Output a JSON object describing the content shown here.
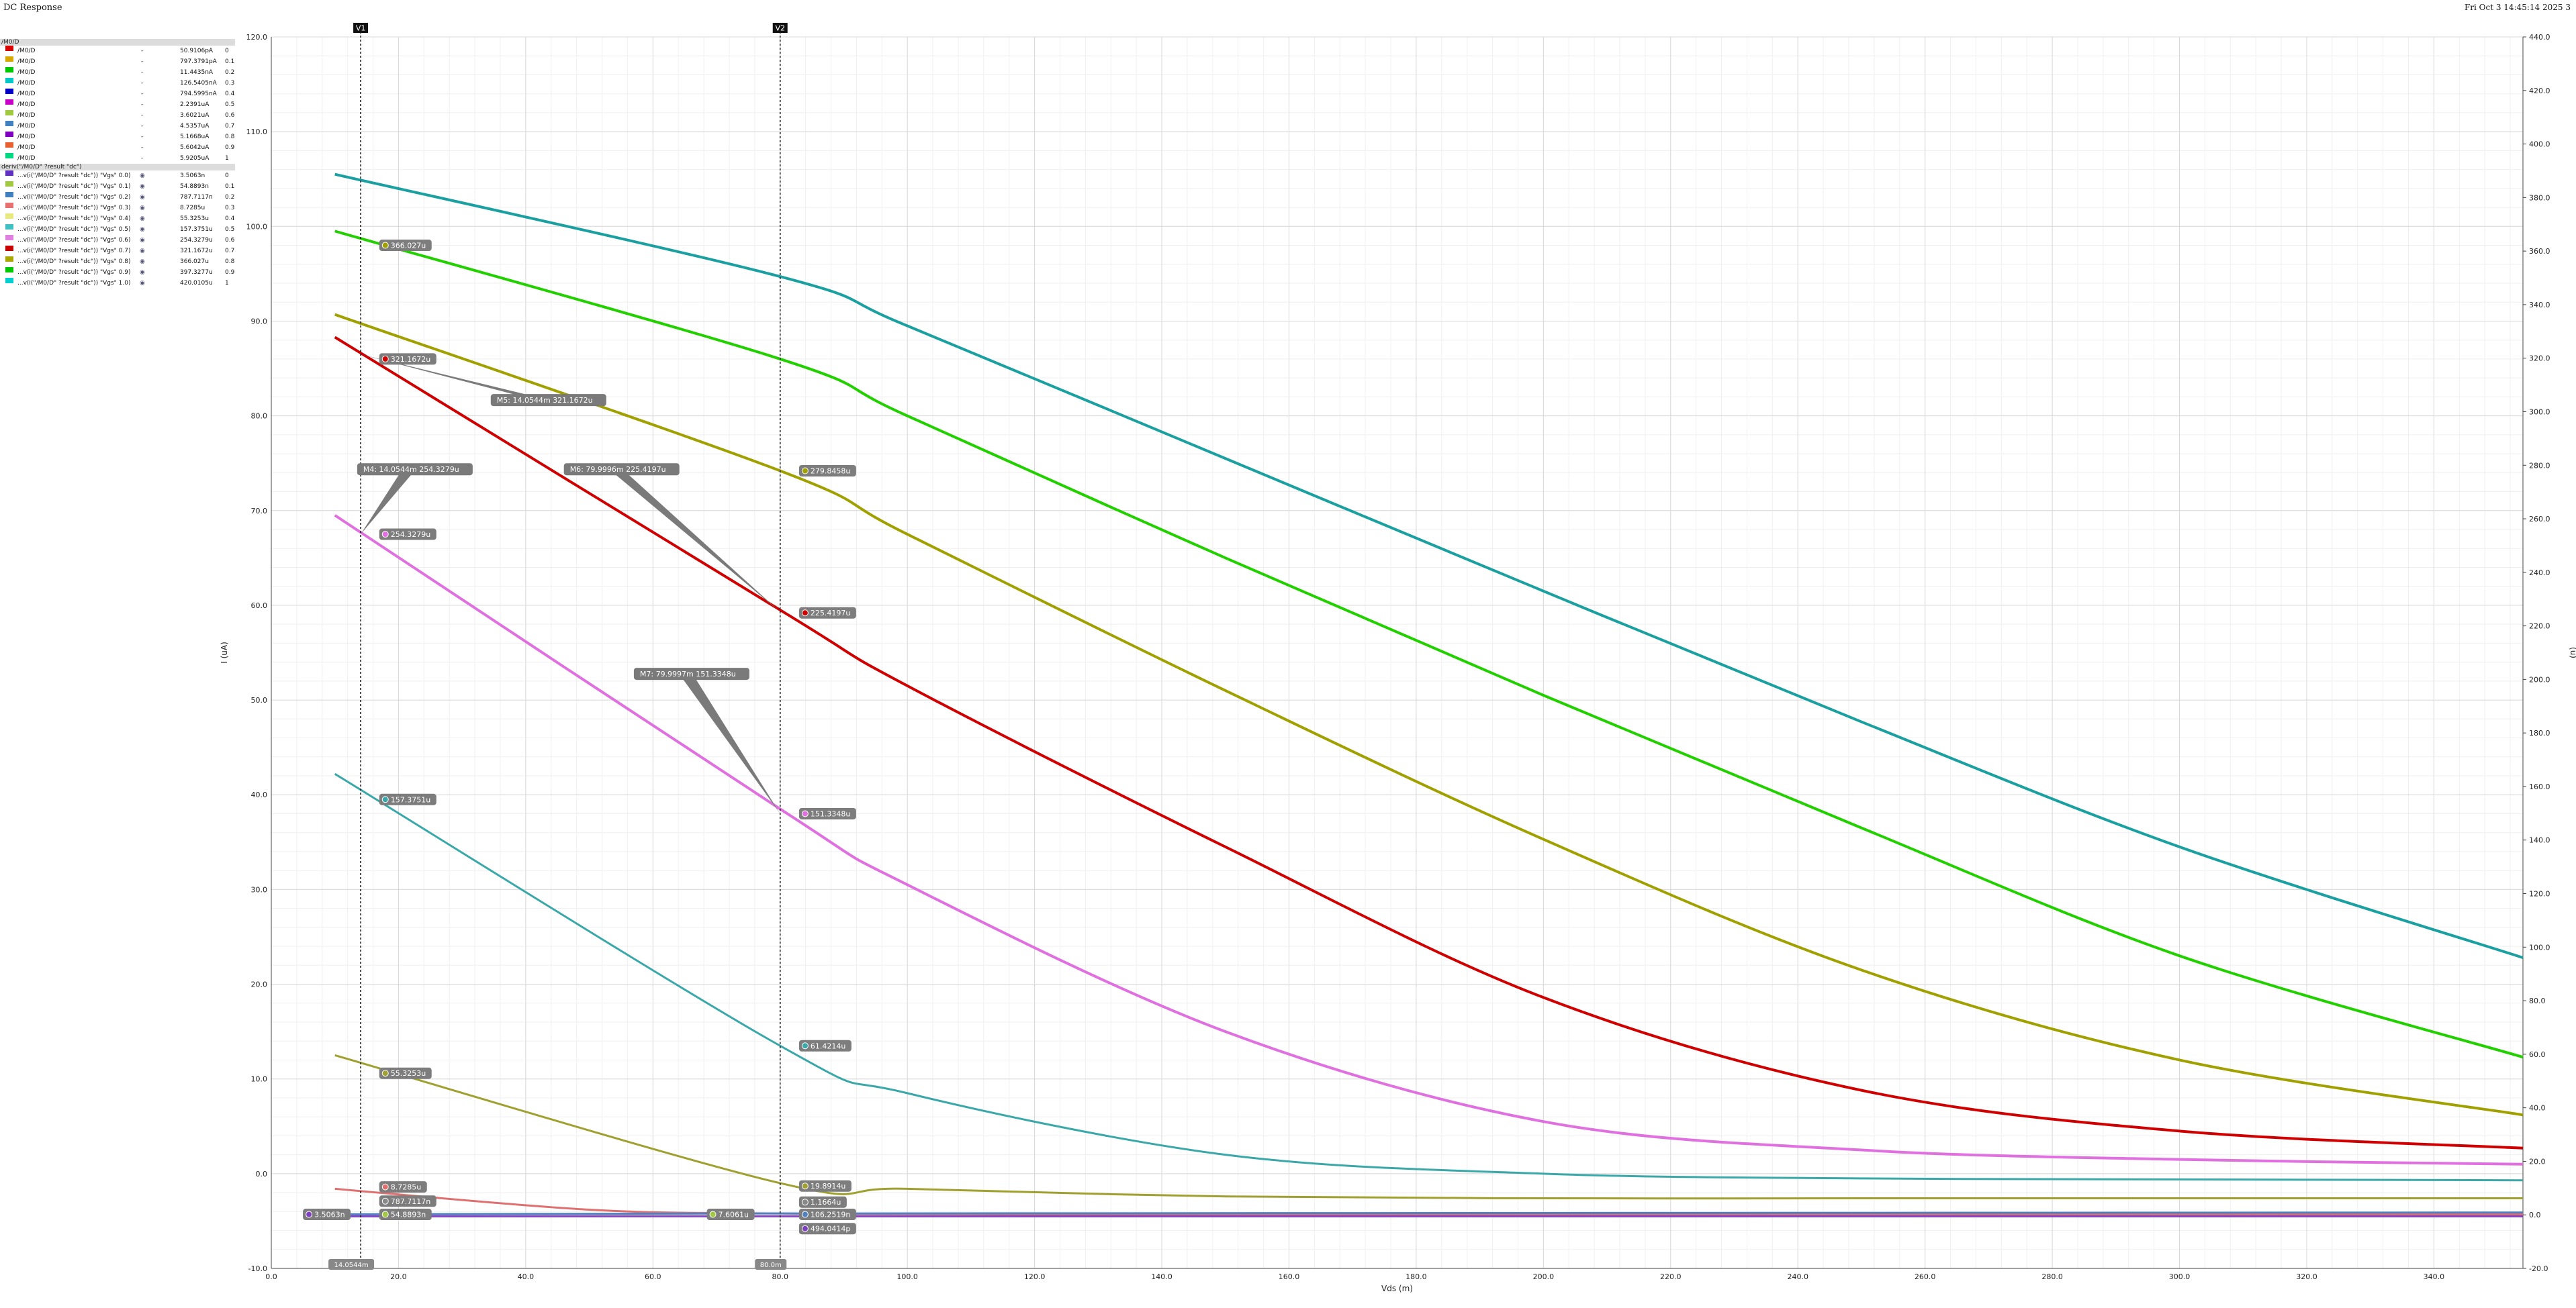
{
  "app": {
    "title": "DC Response",
    "timestamp": "Fri Oct 3 14:45:14 2025  3"
  },
  "legend": {
    "group1_header": "/M0/D",
    "group1": [
      {
        "name": "/M0/D",
        "dash": "-",
        "value": "50.9106pA",
        "param": "0",
        "color": "#d80000"
      },
      {
        "name": "/M0/D",
        "dash": "-",
        "value": "797.3791pA",
        "param": "0.1",
        "color": "#d8a800"
      },
      {
        "name": "/M0/D",
        "dash": "-",
        "value": "11.4435nA",
        "param": "0.2",
        "color": "#00c800"
      },
      {
        "name": "/M0/D",
        "dash": "-",
        "value": "126.5405nA",
        "param": "0.3",
        "color": "#00c8c8"
      },
      {
        "name": "/M0/D",
        "dash": "-",
        "value": "794.5995nA",
        "param": "0.4",
        "color": "#0000c8"
      },
      {
        "name": "/M0/D",
        "dash": "-",
        "value": "2.2391uA",
        "param": "0.5",
        "color": "#c800c8"
      },
      {
        "name": "/M0/D",
        "dash": "-",
        "value": "3.6021uA",
        "param": "0.6",
        "color": "#a0c840"
      },
      {
        "name": "/M0/D",
        "dash": "-",
        "value": "4.5357uA",
        "param": "0.7",
        "color": "#4080c0"
      },
      {
        "name": "/M0/D",
        "dash": "-",
        "value": "5.1668uA",
        "param": "0.8",
        "color": "#8000c0"
      },
      {
        "name": "/M0/D",
        "dash": "-",
        "value": "5.6042uA",
        "param": "0.9",
        "color": "#e86030"
      },
      {
        "name": "/M0/D",
        "dash": "-",
        "value": "5.9205uA",
        "param": "1",
        "color": "#00d880"
      }
    ],
    "group2_header": "deriv(\"/M0/D\" ?result \"dc\")",
    "group2": [
      {
        "name": "...v(i(\"/M0/D\" ?result \"dc\")) \"Vgs\" 0.0)",
        "value": "3.5063n",
        "param": "0",
        "color": "#6030c0"
      },
      {
        "name": "...v(i(\"/M0/D\" ?result \"dc\")) \"Vgs\" 0.1)",
        "value": "54.8893n",
        "param": "0.1",
        "color": "#a0c840"
      },
      {
        "name": "...v(i(\"/M0/D\" ?result \"dc\")) \"Vgs\" 0.2)",
        "value": "787.7117n",
        "param": "0.2",
        "color": "#4080c0"
      },
      {
        "name": "...v(i(\"/M0/D\" ?result \"dc\")) \"Vgs\" 0.3)",
        "value": "8.7285u",
        "param": "0.3",
        "color": "#e87070"
      },
      {
        "name": "...v(i(\"/M0/D\" ?result \"dc\")) \"Vgs\" 0.4)",
        "value": "55.3253u",
        "param": "0.4",
        "color": "#e8e880"
      },
      {
        "name": "...v(i(\"/M0/D\" ?result \"dc\")) \"Vgs\" 0.5)",
        "value": "157.3751u",
        "param": "0.5",
        "color": "#40c0c0"
      },
      {
        "name": "...v(i(\"/M0/D\" ?result \"dc\")) \"Vgs\" 0.6)",
        "value": "254.3279u",
        "param": "0.6",
        "color": "#e080e0"
      },
      {
        "name": "...v(i(\"/M0/D\" ?result \"dc\")) \"Vgs\" 0.7)",
        "value": "321.1672u",
        "param": "0.7",
        "color": "#c80000"
      },
      {
        "name": "...v(i(\"/M0/D\" ?result \"dc\")) \"Vgs\" 0.8)",
        "value": "366.027u",
        "param": "0.8",
        "color": "#a8a800"
      },
      {
        "name": "...v(i(\"/M0/D\" ?result \"dc\")) \"Vgs\" 0.9)",
        "value": "397.3277u",
        "param": "0.9",
        "color": "#00c800"
      },
      {
        "name": "...v(i(\"/M0/D\" ?result \"dc\")) \"Vgs\" 1.0)",
        "value": "420.0105u",
        "param": "1",
        "color": "#00d0d0"
      }
    ]
  },
  "chart_data": {
    "type": "line",
    "xlabel": "Vds (m)",
    "ylabel_left": "I (uA)",
    "ylabel_right": "(u)",
    "xlim": [
      0,
      354
    ],
    "ylim_left": [
      -10,
      120
    ],
    "ylim_right": [
      -20,
      440
    ],
    "xticks": [
      "0.0",
      "20.0",
      "40.0",
      "60.0",
      "80.0",
      "100.0",
      "120.0",
      "140.0",
      "160.0",
      "180.0",
      "200.0",
      "220.0",
      "240.0",
      "260.0",
      "280.0",
      "300.0",
      "320.0",
      "340.0"
    ],
    "yticks_left": [
      "-10.0",
      "0.0",
      "10.0",
      "20.0",
      "30.0",
      "40.0",
      "50.0",
      "60.0",
      "70.0",
      "80.0",
      "90.0",
      "100.0",
      "110.0",
      "120.0"
    ],
    "yticks_right": [
      "-20.0",
      "0.0",
      "20.0",
      "40.0",
      "60.0",
      "80.0",
      "100.0",
      "120.0",
      "140.0",
      "160.0",
      "180.0",
      "200.0",
      "220.0",
      "240.0",
      "260.0",
      "280.0",
      "300.0",
      "320.0",
      "340.0",
      "360.0",
      "380.0",
      "400.0",
      "420.0",
      "440.0"
    ],
    "grid": true,
    "series": [
      {
        "color": "#1aa0a0",
        "x": [
          10,
          80,
          100,
          150,
          200,
          250,
          300,
          354
        ],
        "y": [
          105.5,
          94.7,
          89.5,
          75.5,
          61.5,
          47.7,
          34.5,
          22.8
        ]
      },
      {
        "color": "#22d000",
        "x": [
          10,
          80,
          100,
          150,
          200,
          250,
          300,
          354
        ],
        "y": [
          99.5,
          86.0,
          80.0,
          65.0,
          50.5,
          36.5,
          23.0,
          12.3
        ]
      },
      {
        "color": "#a0a000",
        "x": [
          10,
          80,
          100,
          150,
          200,
          250,
          300,
          354
        ],
        "y": [
          90.7,
          74.2,
          67.5,
          51.0,
          35.3,
          21.5,
          12.0,
          6.2
        ]
      },
      {
        "color": "#d00000",
        "x": [
          10,
          80,
          100,
          150,
          200,
          250,
          300,
          354
        ],
        "y": [
          88.3,
          59.5,
          51.5,
          34.5,
          18.6,
          8.8,
          4.5,
          2.7
        ]
      },
      {
        "color": "#e070e0",
        "x": [
          10,
          80,
          100,
          150,
          200,
          250,
          300,
          354
        ],
        "y": [
          69.5,
          38.5,
          30.5,
          15.0,
          5.5,
          2.5,
          1.5,
          1.0
        ]
      },
      {
        "color": "#3aa8a8",
        "x": [
          10,
          80,
          100,
          150,
          200,
          250,
          300,
          354
        ],
        "y": [
          42.2,
          13.5,
          8.5,
          2.0,
          0.0,
          -0.5,
          -0.6,
          -0.7
        ]
      },
      {
        "color": "#a0a030",
        "x": [
          10,
          80,
          100,
          150,
          200,
          250,
          300,
          354
        ],
        "y": [
          12.5,
          -1.0,
          -1.6,
          -2.4,
          -2.6,
          -2.6,
          -2.6,
          -2.6
        ]
      },
      {
        "color": "#e07070",
        "x": [
          10,
          50,
          80,
          120,
          200,
          354
        ],
        "y": [
          -1.6,
          -3.8,
          -4.2,
          -4.3,
          -4.3,
          -4.3
        ]
      },
      {
        "color": "#5080c0",
        "x": [
          5,
          80,
          354
        ],
        "y": [
          -4.3,
          -4.2,
          -4.1
        ]
      },
      {
        "color": "#8040c0",
        "x": [
          5,
          80,
          354
        ],
        "y": [
          -4.5,
          -4.5,
          -4.5
        ]
      }
    ],
    "cursors": [
      {
        "label": "V1",
        "x": 14.05
      },
      {
        "label": "V2",
        "x": 80.0
      }
    ],
    "cursor_readouts": [
      {
        "text": "14.0544m",
        "x": 14.05
      },
      {
        "text": "80.0m",
        "x": 80.0
      }
    ],
    "point_labels": [
      {
        "x": 17.5,
        "y": 98.0,
        "color": "#a0a000",
        "text": "366.027u"
      },
      {
        "x": 17.5,
        "y": 86.0,
        "color": "#d00000",
        "text": "321.1672u"
      },
      {
        "x": 17.5,
        "y": 67.5,
        "color": "#e070e0",
        "text": "254.3279u"
      },
      {
        "x": 17.5,
        "y": 39.5,
        "color": "#3aa8a8",
        "text": "157.3751u"
      },
      {
        "x": 17.5,
        "y": 10.6,
        "color": "#a0a030",
        "text": "55.3253u"
      },
      {
        "x": 17.5,
        "y": -1.4,
        "color": "#e07070",
        "text": "8.7285u"
      },
      {
        "x": 17.5,
        "y": -2.9,
        "color": "#888888",
        "text": "787.7117n"
      },
      {
        "x": 17.5,
        "y": -4.3,
        "color": "#a0c840",
        "text": "54.8893n"
      },
      {
        "x": 5.5,
        "y": -4.3,
        "color": "#8040c0",
        "text": "3.5063n"
      },
      {
        "x": 83.5,
        "y": 74.2,
        "color": "#a0a000",
        "text": "279.8458u"
      },
      {
        "x": 83.5,
        "y": 59.2,
        "color": "#d00000",
        "text": "225.4197u"
      },
      {
        "x": 83.5,
        "y": 38.0,
        "color": "#e070e0",
        "text": "151.3348u"
      },
      {
        "x": 83.5,
        "y": 13.5,
        "color": "#3aa8a8",
        "text": "61.4214u"
      },
      {
        "x": 83.5,
        "y": -1.3,
        "color": "#a0a030",
        "text": "19.8914u"
      },
      {
        "x": 83.5,
        "y": -3.0,
        "color": "#888888",
        "text": "1.1664u"
      },
      {
        "x": 83.5,
        "y": -4.3,
        "color": "#5080c0",
        "text": "106.2519n"
      },
      {
        "x": 83.5,
        "y": -5.8,
        "color": "#8040c0",
        "text": "494.0414p"
      },
      {
        "x": 69.0,
        "y": -4.3,
        "color": "#a0c840",
        "text": "7.6061u"
      }
    ],
    "annotations": [
      {
        "text": "M5: 14.0544m 321.1672u",
        "x": 34.5,
        "y": 82.3,
        "tx": 14.05,
        "ty": 86.5
      },
      {
        "text": "M4: 14.0544m 254.3279u",
        "x": 13.5,
        "y": 75.0,
        "tx": 14.05,
        "ty": 67.5
      },
      {
        "text": "M6: 79.9996m 225.4197u",
        "x": 46.0,
        "y": 75.0,
        "tx": 80.0,
        "ty": 59.3
      },
      {
        "text": "M7: 79.9997m 151.3348u",
        "x": 57.0,
        "y": 53.4,
        "tx": 80.0,
        "ty": 38.0
      }
    ]
  }
}
